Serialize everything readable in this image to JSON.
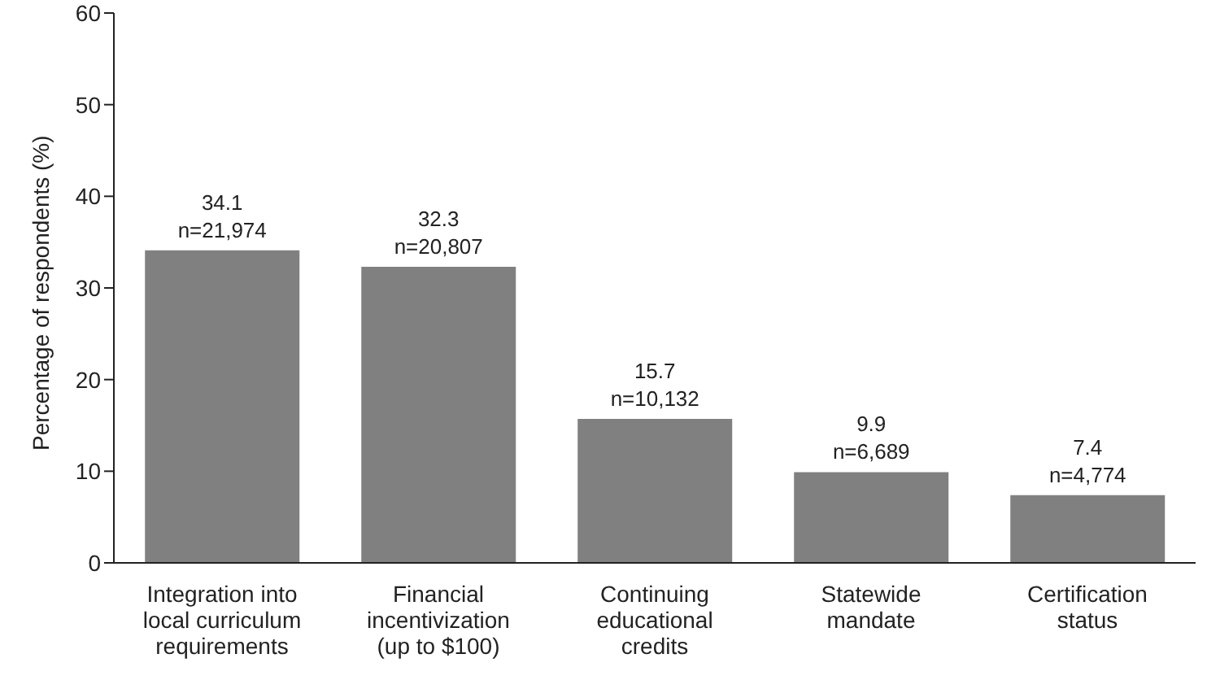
{
  "chart_data": {
    "type": "bar",
    "ylabel": "Percentage of respondents (%)",
    "categories": [
      "Integration into local curriculum requirements",
      "Financial incentivization (up to $100)",
      "Continuing educational credits",
      "Statewide mandate",
      "Certification status"
    ],
    "values": [
      34.1,
      32.3,
      15.7,
      9.9,
      7.4
    ],
    "value_labels": [
      "34.1\nn=21,974",
      "32.3\nn=20,807",
      "15.7\nn=10,132",
      "9.9\nn=6,689",
      "7.4\nn=4,774"
    ],
    "color": "#808080",
    "ylim": [
      0,
      60
    ],
    "yticks": [
      0,
      10,
      20,
      30,
      40,
      50,
      60
    ],
    "grid": false,
    "legend": false
  }
}
